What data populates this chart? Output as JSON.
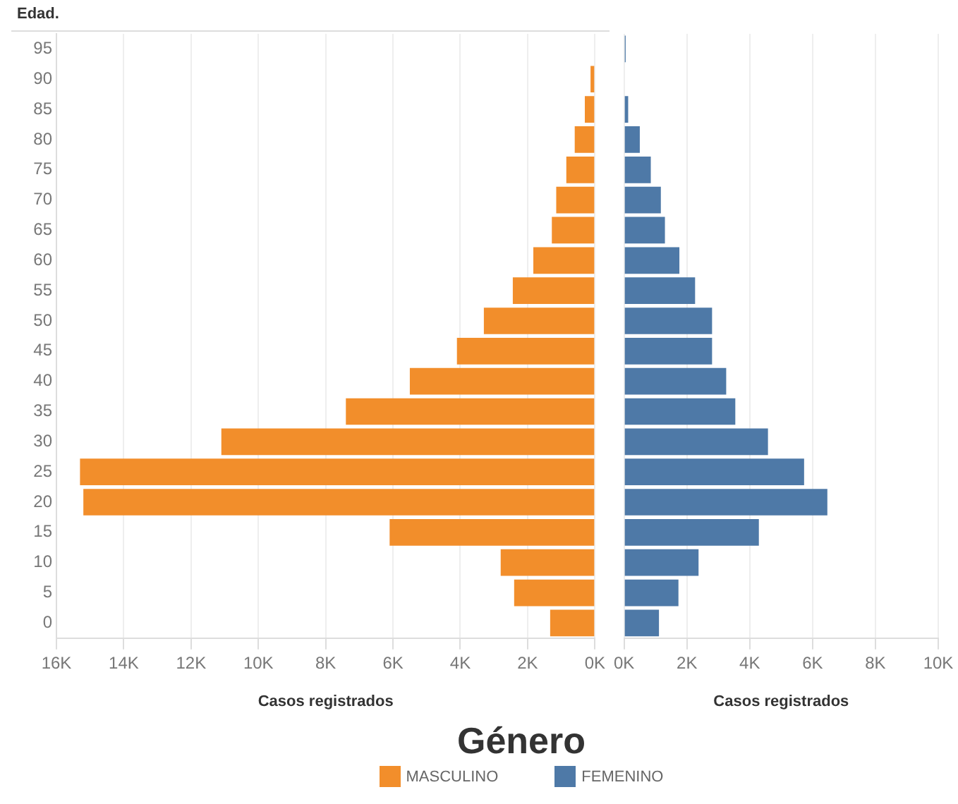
{
  "chart_data": [
    {
      "type": "bar",
      "orientation": "horizontal",
      "ylabel": "Edad.",
      "xlabel": "Casos registrados",
      "legend_title": "Género",
      "legend": "bottom",
      "grid": "x",
      "categories": [
        "95",
        "90",
        "85",
        "80",
        "75",
        "70",
        "65",
        "60",
        "55",
        "50",
        "45",
        "40",
        "35",
        "30",
        "25",
        "20",
        "15",
        "10",
        "5",
        "0"
      ],
      "series": [
        {
          "name": "MASCULINO",
          "color": "#f28e2b",
          "values": [
            null,
            130,
            300,
            600,
            850,
            1150,
            1280,
            1830,
            2440,
            3300,
            4100,
            5500,
            7400,
            11100,
            15300,
            15200,
            6100,
            2800,
            2400,
            1330
          ]
        }
      ],
      "xlim": [
        16000,
        0
      ],
      "xticks": [
        {
          "value": 16000,
          "label": "16K"
        },
        {
          "value": 14000,
          "label": "14K"
        },
        {
          "value": 12000,
          "label": "12K"
        },
        {
          "value": 10000,
          "label": "10K"
        },
        {
          "value": 8000,
          "label": "8K"
        },
        {
          "value": 6000,
          "label": "6K"
        },
        {
          "value": 4000,
          "label": "4K"
        },
        {
          "value": 2000,
          "label": "2K"
        },
        {
          "value": 0,
          "label": "0K"
        }
      ]
    },
    {
      "type": "bar",
      "orientation": "horizontal",
      "xlabel": "Casos registrados",
      "legend": "bottom",
      "grid": "x",
      "tick_labels": "x",
      "categories": [
        "95",
        "90",
        "85",
        "80",
        "75",
        "70",
        "65",
        "60",
        "55",
        "50",
        "45",
        "40",
        "35",
        "30",
        "25",
        "20",
        "15",
        "10",
        "5",
        "0"
      ],
      "series": [
        {
          "name": "FEMENINO",
          "color": "#4e79a7",
          "values": [
            50,
            null,
            130,
            500,
            850,
            1170,
            1300,
            1760,
            2260,
            2800,
            2800,
            3250,
            3540,
            4580,
            5730,
            6470,
            4290,
            2370,
            1730,
            1110
          ]
        }
      ],
      "xlim": [
        0,
        10000
      ],
      "xticks": [
        {
          "value": 0,
          "label": "0K"
        },
        {
          "value": 2000,
          "label": "2K"
        },
        {
          "value": 4000,
          "label": "4K"
        },
        {
          "value": 6000,
          "label": "6K"
        },
        {
          "value": 8000,
          "label": "8K"
        },
        {
          "value": 10000,
          "label": "10K"
        }
      ]
    }
  ]
}
